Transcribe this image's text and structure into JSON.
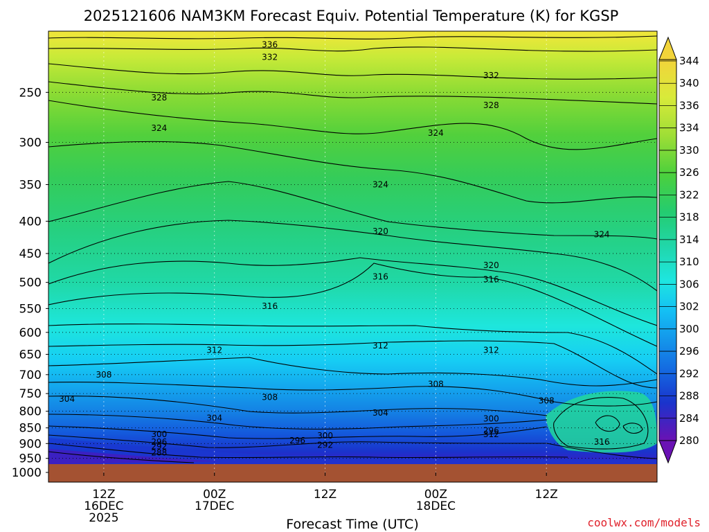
{
  "chart_data": {
    "type": "heatmap",
    "title": "2025121606 NAM3KM Forecast Equiv. Potential Temperature (K) for KGSP",
    "xlabel": "Forecast Time (UTC)",
    "ylabel": "",
    "y_scale": "log",
    "y_inverted": true,
    "ylim": [
      1000,
      200
    ],
    "y_ticks": [
      250,
      300,
      350,
      400,
      450,
      500,
      550,
      600,
      650,
      700,
      750,
      800,
      850,
      900,
      950,
      1000
    ],
    "x_ticks": [
      {
        "line1": "12Z",
        "line2": "16DEC",
        "line3": "2025"
      },
      {
        "line1": "00Z",
        "line2": "17DEC",
        "line3": ""
      },
      {
        "line1": "12Z",
        "line2": "",
        "line3": ""
      },
      {
        "line1": "00Z",
        "line2": "18DEC",
        "line3": ""
      },
      {
        "line1": "12Z",
        "line2": "",
        "line3": ""
      }
    ],
    "colorbar": {
      "labels": [
        344,
        340,
        336,
        334,
        330,
        326,
        322,
        318,
        314,
        310,
        306,
        302,
        300,
        296,
        292,
        288,
        284,
        280
      ],
      "colors": [
        "#f0d640",
        "#dcec3a",
        "#c2e63a",
        "#a4e035",
        "#7cd634",
        "#4ccf3c",
        "#2ecc5c",
        "#22d18a",
        "#20dbb4",
        "#20e6dc",
        "#16d8f2",
        "#14aef0",
        "#1488e6",
        "#1466e0",
        "#1446d8",
        "#1a2ccc",
        "#3a1cc4",
        "#5a12b8"
      ]
    },
    "contour_labels": [
      {
        "text": "336",
        "x": "00Z 17DEC+",
        "p": 210
      },
      {
        "text": "332",
        "x": "00Z 17DEC+",
        "p": 220
      },
      {
        "text": "332",
        "x": "00Z 18DEC+",
        "p": 235
      },
      {
        "text": "328",
        "x": "12Z 16DEC+",
        "p": 255
      },
      {
        "text": "328",
        "x": "00Z 18DEC+",
        "p": 262
      },
      {
        "text": "324",
        "x": "12Z 16DEC+",
        "p": 285
      },
      {
        "text": "324",
        "x": "00Z 18DEC",
        "p": 290
      },
      {
        "text": "324",
        "x": "12Z 17DEC+",
        "p": 350
      },
      {
        "text": "324",
        "x": "12Z 18DEC+",
        "p": 420
      },
      {
        "text": "320",
        "x": "12Z 17DEC+",
        "p": 415
      },
      {
        "text": "320",
        "x": "00Z 18DEC+",
        "p": 470
      },
      {
        "text": "316",
        "x": "12Z 17DEC+",
        "p": 490
      },
      {
        "text": "316",
        "x": "00Z 18DEC+",
        "p": 495
      },
      {
        "text": "316",
        "x": "00Z 17DEC+",
        "p": 545
      },
      {
        "text": "312",
        "x": "00Z 17DEC",
        "p": 640
      },
      {
        "text": "312",
        "x": "12Z 17DEC+",
        "p": 630
      },
      {
        "text": "312",
        "x": "00Z 18DEC+",
        "p": 640
      },
      {
        "text": "308",
        "x": "12Z 16DEC",
        "p": 700
      },
      {
        "text": "308",
        "x": "00Z 17DEC+",
        "p": 760
      },
      {
        "text": "308",
        "x": "00Z 18DEC",
        "p": 725
      },
      {
        "text": "308",
        "x": "12Z 18DEC",
        "p": 770
      },
      {
        "text": "304",
        "x": "12Z 16DEC-",
        "p": 765
      },
      {
        "text": "304",
        "x": "00Z 17DEC",
        "p": 820
      },
      {
        "text": "304",
        "x": "12Z 17DEC+",
        "p": 805
      },
      {
        "text": "300",
        "x": "12Z 16DEC+",
        "p": 870
      },
      {
        "text": "300",
        "x": "12Z 17DEC",
        "p": 875
      },
      {
        "text": "300",
        "x": "00Z 18DEC+",
        "p": 822
      },
      {
        "text": "296",
        "x": "12Z 16DEC+",
        "p": 895
      },
      {
        "text": "296",
        "x": "12Z 17DEC-",
        "p": 890
      },
      {
        "text": "296",
        "x": "00Z 18DEC+",
        "p": 858
      },
      {
        "text": "292",
        "x": "12Z 16DEC+",
        "p": 910
      },
      {
        "text": "292",
        "x": "12Z 17DEC",
        "p": 905
      },
      {
        "text": "288",
        "x": "12Z 16DEC+",
        "p": 930
      },
      {
        "text": "312",
        "x": "00Z 18DEC+",
        "p": 870
      },
      {
        "text": "316",
        "x": "12Z 18DEC+",
        "p": 895
      }
    ]
  },
  "credit": "coolwx.com/models"
}
